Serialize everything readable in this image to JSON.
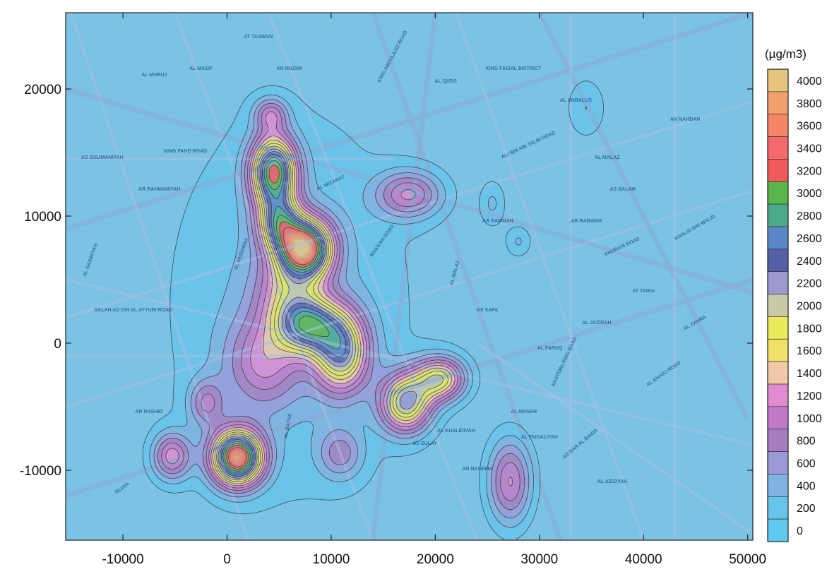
{
  "chart_data": {
    "type": "heatmap",
    "title": "",
    "unit_label": "(µg/m3)",
    "x_ticks": [
      -10000,
      0,
      10000,
      20000,
      30000,
      40000,
      50000
    ],
    "y_ticks": [
      -10000,
      0,
      10000,
      20000
    ],
    "xlim": [
      -15500,
      50500
    ],
    "ylim": [
      -15500,
      26000
    ],
    "legend_levels": [
      {
        "value": "4000",
        "color": "#e8c57e"
      },
      {
        "value": "3800",
        "color": "#f0a06a"
      },
      {
        "value": "3600",
        "color": "#f58567"
      },
      {
        "value": "3400",
        "color": "#f26a6a"
      },
      {
        "value": "3200",
        "color": "#f05a5a"
      },
      {
        "value": "3000",
        "color": "#5ab54b"
      },
      {
        "value": "2800",
        "color": "#4caa8a"
      },
      {
        "value": "2600",
        "color": "#5a86c8"
      },
      {
        "value": "2400",
        "color": "#5560a8"
      },
      {
        "value": "2200",
        "color": "#9c9ad0"
      },
      {
        "value": "2000",
        "color": "#c9c9a8"
      },
      {
        "value": "1800",
        "color": "#eaea5a"
      },
      {
        "value": "1600",
        "color": "#f1e06a"
      },
      {
        "value": "1400",
        "color": "#f2c8a8"
      },
      {
        "value": "1200",
        "color": "#e08ad0"
      },
      {
        "value": "1000",
        "color": "#c27ac8"
      },
      {
        "value": "800",
        "color": "#a77cc0"
      },
      {
        "value": "600",
        "color": "#9a9ad8"
      },
      {
        "value": "400",
        "color": "#7fb3e2"
      },
      {
        "value": "200",
        "color": "#66c3ea"
      },
      {
        "value": "0",
        "color": "#5ec9ec"
      }
    ],
    "hotspots": [
      {
        "x": 4500,
        "y": 13500,
        "peak": 3000,
        "sx": 1500,
        "sy": 1900
      },
      {
        "x": 7500,
        "y": 7500,
        "peak": 3400,
        "sx": 1800,
        "sy": 1600
      },
      {
        "x": 5000,
        "y": 9500,
        "peak": 1800,
        "sx": 1400,
        "sy": 1500
      },
      {
        "x": 4200,
        "y": 18000,
        "peak": 900,
        "sx": 1100,
        "sy": 900
      },
      {
        "x": 17500,
        "y": 11700,
        "peak": 1100,
        "sx": 2200,
        "sy": 1300
      },
      {
        "x": 7800,
        "y": 1400,
        "peak": 2000,
        "sx": 2000,
        "sy": 1500
      },
      {
        "x": 11000,
        "y": -600,
        "peak": 2100,
        "sx": 1800,
        "sy": 2200
      },
      {
        "x": 17200,
        "y": -4700,
        "peak": 2100,
        "sx": 1700,
        "sy": 1600
      },
      {
        "x": 20500,
        "y": -2800,
        "peak": 1800,
        "sx": 1700,
        "sy": 1200
      },
      {
        "x": 1000,
        "y": -9000,
        "peak": 3600,
        "sx": 1700,
        "sy": 1500
      },
      {
        "x": -5300,
        "y": -8900,
        "peak": 1200,
        "sx": 1300,
        "sy": 1300
      },
      {
        "x": -2000,
        "y": -4700,
        "peak": 800,
        "sx": 1200,
        "sy": 1300
      },
      {
        "x": 27200,
        "y": -10900,
        "peak": 1200,
        "sx": 1500,
        "sy": 2400
      },
      {
        "x": 10900,
        "y": -8700,
        "peak": 700,
        "sx": 1500,
        "sy": 1400
      },
      {
        "x": 25500,
        "y": 11000,
        "peak": 400,
        "sx": 900,
        "sy": 1300
      },
      {
        "x": 28000,
        "y": 8000,
        "peak": 400,
        "sx": 900,
        "sy": 900
      },
      {
        "x": 34500,
        "y": 18500,
        "peak": 400,
        "sx": 1400,
        "sy": 1800
      },
      {
        "x": 6000,
        "y": 4000,
        "peak": 1000,
        "sx": 2200,
        "sy": 2200
      },
      {
        "x": 3500,
        "y": -1500,
        "peak": 900,
        "sx": 2500,
        "sy": 2500
      }
    ]
  },
  "map_labels": [
    {
      "text": "AR RAHMANIYAH",
      "x": -6500,
      "y": 12000,
      "rot": 0
    },
    {
      "text": "KING FAISAL DISTRICT",
      "x": 27500,
      "y": 21500,
      "rot": 0
    },
    {
      "text": "AL MALAZ",
      "x": 36500,
      "y": 14500,
      "rot": 0
    },
    {
      "text": "AS SAFA",
      "x": 25000,
      "y": 2500,
      "rot": 0
    },
    {
      "text": "AL FARUQ",
      "x": 31000,
      "y": -500,
      "rot": 0
    },
    {
      "text": "AR RAWDAH",
      "x": 26000,
      "y": 9500,
      "rot": 0
    },
    {
      "text": "AN NASEEM",
      "x": 24000,
      "y": -10000,
      "rot": 0
    },
    {
      "text": "AL AZIZIYAH",
      "x": 37000,
      "y": -11000,
      "rot": 0
    },
    {
      "text": "AL ANDALUS",
      "x": 33500,
      "y": 19000,
      "rot": 0
    },
    {
      "text": "AS SALAM",
      "x": 38000,
      "y": 12000,
      "rot": 0
    },
    {
      "text": "AR RABWAH",
      "x": 34500,
      "y": 9500,
      "rot": 0
    },
    {
      "text": "AL QUDS",
      "x": 21000,
      "y": 20500,
      "rot": 0
    },
    {
      "text": "AN NUZHA",
      "x": 6000,
      "y": 21500,
      "rot": 0
    },
    {
      "text": "AL MURUJ",
      "x": -7000,
      "y": 21000,
      "rot": 0
    },
    {
      "text": "AT TAAWUN",
      "x": 3000,
      "y": 24000,
      "rot": 0
    },
    {
      "text": "AL MASIF",
      "x": -2500,
      "y": 21500,
      "rot": 0
    },
    {
      "text": "AS SULAY",
      "x": 19000,
      "y": -8000,
      "rot": 0
    },
    {
      "text": "AD DAR AL BAIDA",
      "x": 34000,
      "y": -8000,
      "rot": -40
    },
    {
      "text": "AL MANAR",
      "x": 28500,
      "y": -5500,
      "rot": 0
    },
    {
      "text": "AR RASHID",
      "x": -7500,
      "y": -5500,
      "rot": 0
    },
    {
      "text": "AL KHALIDIYAH",
      "x": 22000,
      "y": -7000,
      "rot": 0
    },
    {
      "text": "AL FAISALIYAH",
      "x": 30000,
      "y": -7500,
      "rot": 0
    },
    {
      "text": "AL JAZIRAH",
      "x": 35500,
      "y": 1500,
      "rot": 0
    },
    {
      "text": "AT TAIBA",
      "x": 40000,
      "y": 4000,
      "rot": 0
    },
    {
      "text": "AN NAHDAH",
      "x": 44000,
      "y": 17500,
      "rot": 0
    },
    {
      "text": "AL MURABBA",
      "x": 1500,
      "y": 7000,
      "rot": -70
    },
    {
      "text": "ALI IBN ABI TALIB ROAD",
      "x": 29000,
      "y": 15500,
      "rot": -25
    },
    {
      "text": "KHURAIS ROAD",
      "x": 38000,
      "y": 7500,
      "rot": -25
    },
    {
      "text": "EASTERN RING ROAD",
      "x": 32500,
      "y": -1500,
      "rot": -65
    },
    {
      "text": "AL KHARJ ROAD",
      "x": 42000,
      "y": -2500,
      "rot": -35
    },
    {
      "text": "KING ABDULAZIZ ROAD",
      "x": 16000,
      "y": 22500,
      "rot": -62
    },
    {
      "text": "MAKKAH ROAD",
      "x": 15000,
      "y": 8000,
      "rot": -55
    },
    {
      "text": "SALAH AD DIN AL AYYUBI ROAD",
      "x": -9000,
      "y": 2500,
      "rot": 0
    },
    {
      "text": "AL BATHA",
      "x": 6000,
      "y": -6500,
      "rot": -80
    },
    {
      "text": "OLAYA",
      "x": -10000,
      "y": -11500,
      "rot": -35
    },
    {
      "text": "AL WIZARAT",
      "x": 10000,
      "y": 12500,
      "rot": -25
    },
    {
      "text": "KING FAHD ROAD",
      "x": -4000,
      "y": 15000,
      "rot": 0
    },
    {
      "text": "AS SULIMANIYAH",
      "x": -12000,
      "y": 14500,
      "rot": 0
    },
    {
      "text": "AL MALAZ",
      "x": 22000,
      "y": 5500,
      "rot": -75
    },
    {
      "text": "KHALID BIN WALID",
      "x": 45000,
      "y": 9000,
      "rot": -30
    },
    {
      "text": "AL NASIRIYAH",
      "x": -13000,
      "y": 6500,
      "rot": -70
    },
    {
      "text": "AL ZAHRA",
      "x": 45000,
      "y": 1500,
      "rot": -30
    }
  ]
}
